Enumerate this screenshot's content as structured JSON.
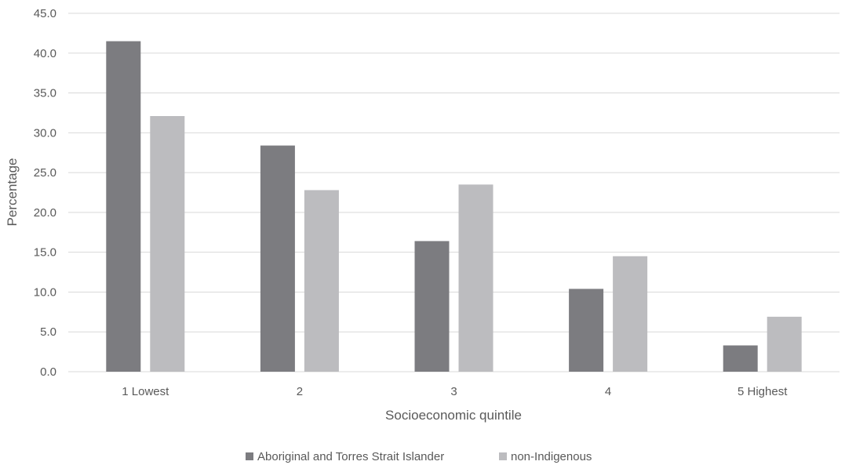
{
  "chart_data": {
    "type": "bar",
    "categories": [
      "1 Lowest",
      "2",
      "3",
      "4",
      "5 Highest"
    ],
    "series": [
      {
        "name": "Aboriginal and Torres Strait Islander",
        "values": [
          41.5,
          28.4,
          16.4,
          10.4,
          3.3
        ],
        "color": "#7c7c80"
      },
      {
        "name": "non-Indigenous",
        "values": [
          32.1,
          22.8,
          23.5,
          14.5,
          6.9
        ],
        "color": "#bcbcbf"
      }
    ],
    "xlabel": "Socioeconomic quintile",
    "ylabel": "Percentage",
    "ylim": [
      0,
      45
    ],
    "ytick_step": 5,
    "ytick_format": "one-decimal",
    "grid": true,
    "legend_position": "bottom"
  }
}
